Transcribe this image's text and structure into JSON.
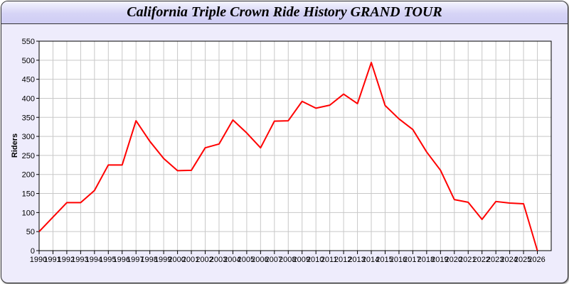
{
  "chart_data": {
    "type": "line",
    "title": "California Triple Crown Ride History GRAND TOUR",
    "xlabel": "",
    "ylabel": "Riders",
    "x": [
      1990,
      1991,
      1992,
      1993,
      1994,
      1995,
      1996,
      1997,
      1998,
      1999,
      2000,
      2001,
      2002,
      2003,
      2004,
      2005,
      2006,
      2007,
      2008,
      2009,
      2010,
      2011,
      2012,
      2013,
      2014,
      2015,
      2016,
      2017,
      2018,
      2019,
      2020,
      2021,
      2022,
      2023,
      2024,
      2025,
      2026
    ],
    "series": [
      {
        "values": [
          50,
          88,
          126,
          126,
          158,
          225,
          225,
          341,
          287,
          242,
          210,
          211,
          270,
          280,
          343,
          309,
          270,
          340,
          341,
          392,
          374,
          382,
          411,
          386,
          494,
          381,
          346,
          318,
          259,
          211,
          134,
          127,
          82,
          129,
          125,
          123,
          0
        ],
        "color": "#ff0000"
      }
    ],
    "xlim": [
      1990,
      2027
    ],
    "ylim": [
      0,
      550
    ],
    "yticks": [
      0,
      50,
      100,
      150,
      200,
      250,
      300,
      350,
      400,
      450,
      500,
      550
    ],
    "grid": true,
    "legend": "none",
    "grid_color": "#c8c8c8",
    "background": "#eeecfc"
  }
}
